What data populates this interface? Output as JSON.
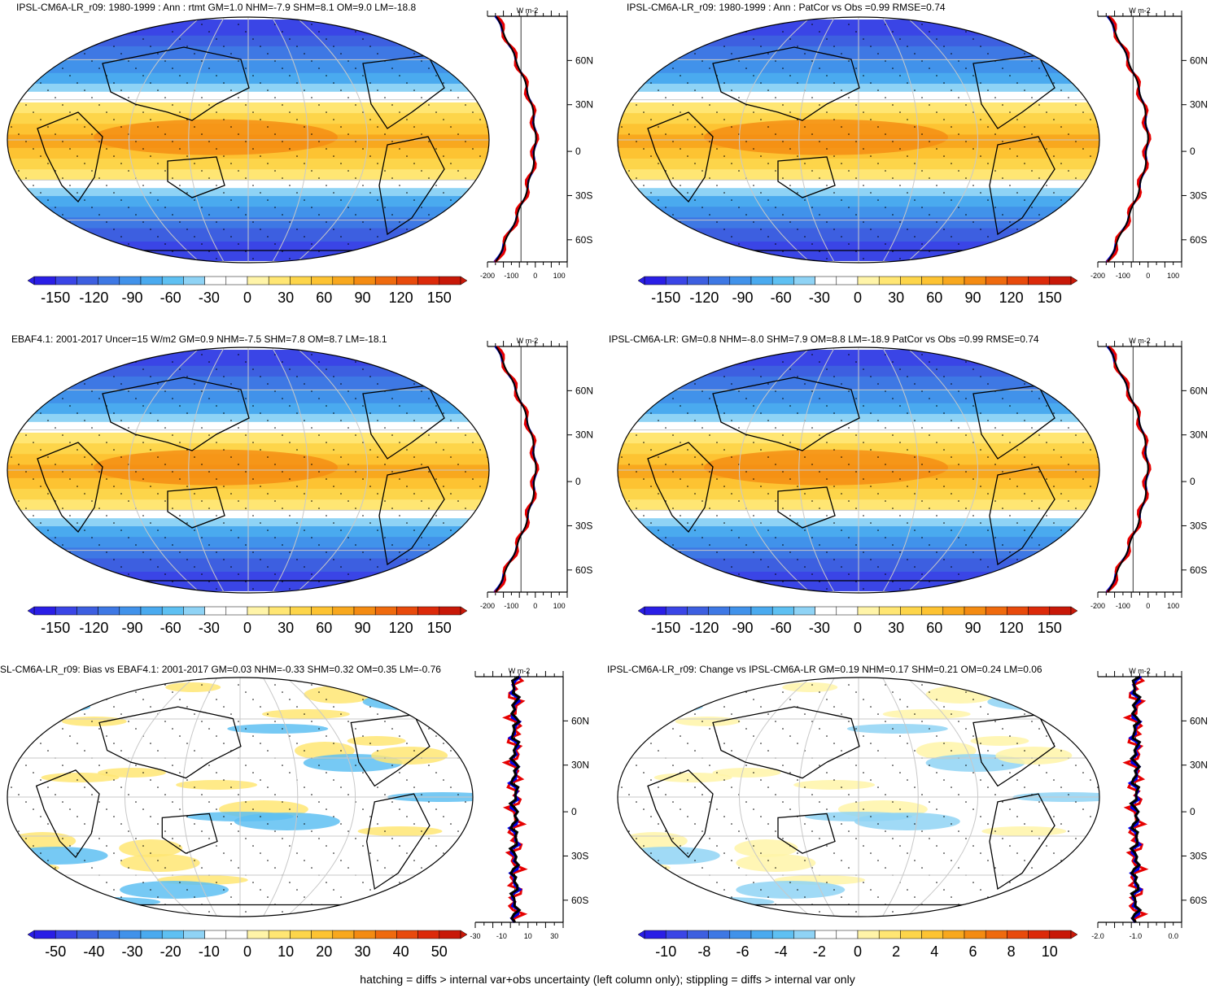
{
  "footer": "hatching = diffs > internal var+obs uncertainty (left column only); stippling = diffs > internal var only",
  "colors": {
    "scale": [
      "#2a1ee6",
      "#3a45e6",
      "#3d5fe0",
      "#3e78e4",
      "#4192ea",
      "#4aaaef",
      "#5ec0f2",
      "#8fd3f5",
      "#ffffff",
      "#ffffff",
      "#fff4a8",
      "#ffe673",
      "#fdd54a",
      "#fdc332",
      "#f8a81e",
      "#f48b12",
      "#ef6a0e",
      "#e84a0c",
      "#dc2a0a",
      "#c81808"
    ],
    "obs_line": "#e60000",
    "model_line": "#0000e6",
    "mean_line": "#000000"
  },
  "chart_data": [
    {
      "type": "heatmap",
      "title": "IPSL-CM6A-LR_r09: 1980-1999 : Ann : rtmt GM=1.0 NHM=-7.9 SHM=8.1 OM=9.0 LM=-18.8",
      "colorbar_ticks": [
        "-150",
        "-120",
        "-90",
        "-60",
        "-30",
        "0",
        "30",
        "60",
        "90",
        "120",
        "150"
      ],
      "profile_xticks": [
        "-200",
        "-100",
        "0",
        "100"
      ],
      "profile_unit": "W m-2",
      "profile_lat_ticks": [
        "60N",
        "30N",
        "0",
        "30S",
        "60S"
      ]
    },
    {
      "type": "heatmap",
      "title": "IPSL-CM6A-LR_r09: 1980-1999 : Ann : PatCor vs Obs =0.99 RMSE=0.74",
      "colorbar_ticks": [
        "-150",
        "-120",
        "-90",
        "-60",
        "-30",
        "0",
        "30",
        "60",
        "90",
        "120",
        "150"
      ],
      "profile_xticks": [
        "-200",
        "-100",
        "0",
        "100"
      ],
      "profile_unit": "W m-2",
      "profile_lat_ticks": [
        "60N",
        "30N",
        "0",
        "30S",
        "60S"
      ]
    },
    {
      "type": "heatmap",
      "title": "EBAF4.1: 2001-2017 Uncer=15 W/m2 GM=0.9 NHM=-7.5 SHM=7.8 OM=8.7 LM=-18.1",
      "colorbar_ticks": [
        "-150",
        "-120",
        "-90",
        "-60",
        "-30",
        "0",
        "30",
        "60",
        "90",
        "120",
        "150"
      ],
      "profile_xticks": [
        "-200",
        "-100",
        "0",
        "100"
      ],
      "profile_unit": "W m-2",
      "profile_lat_ticks": [
        "60N",
        "30N",
        "0",
        "30S",
        "60S"
      ]
    },
    {
      "type": "heatmap",
      "title": "IPSL-CM6A-LR: GM=0.8 NHM=-8.0 SHM=7.9 OM=8.8 LM=-18.9 PatCor vs Obs =0.99 RMSE=0.74",
      "colorbar_ticks": [
        "-150",
        "-120",
        "-90",
        "-60",
        "-30",
        "0",
        "30",
        "60",
        "90",
        "120",
        "150"
      ],
      "profile_xticks": [
        "-200",
        "-100",
        "0",
        "100"
      ],
      "profile_unit": "W m-2",
      "profile_lat_ticks": [
        "60N",
        "30N",
        "0",
        "30S",
        "60S"
      ]
    },
    {
      "type": "heatmap",
      "title": "SL-CM6A-LR_r09: Bias vs EBAF4.1: 2001-2017 GM=0.03 NHM=-0.33 SHM=0.32 OM=0.35 LM=-0.76",
      "colorbar_ticks": [
        "-50",
        "-40",
        "-30",
        "-20",
        "-10",
        "0",
        "10",
        "20",
        "30",
        "40",
        "50"
      ],
      "profile_xticks": [
        "-30",
        "-10",
        "10",
        "30"
      ],
      "profile_unit": "W m-2",
      "profile_lat_ticks": [
        "60N",
        "30N",
        "0",
        "30S",
        "60S"
      ]
    },
    {
      "type": "heatmap",
      "title": "IPSL-CM6A-LR_r09: Change vs IPSL-CM6A-LR GM=0.19 NHM=0.17 SHM=0.21 OM=0.24 LM=0.06",
      "colorbar_ticks": [
        "-10",
        "-8",
        "-6",
        "-4",
        "-2",
        "0",
        "2",
        "4",
        "6",
        "8",
        "10"
      ],
      "profile_xticks": [
        "-2.0",
        "-1.0",
        "0.0"
      ],
      "profile_unit": "W m-2",
      "profile_lat_ticks": [
        "60N",
        "30N",
        "0",
        "30S",
        "60S"
      ]
    }
  ]
}
